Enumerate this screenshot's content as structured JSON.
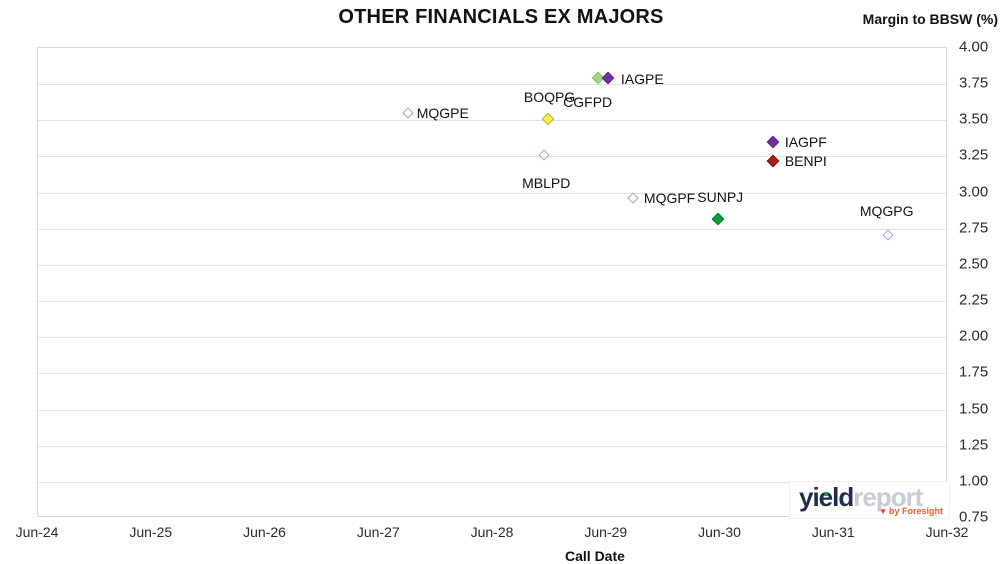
{
  "header": {
    "title": "OTHER FINANCIALS EX MAJORS",
    "y_axis_title": "Margin to BBSW (%)",
    "x_axis_title": "Call Date"
  },
  "chart_data": {
    "type": "scatter",
    "title": "OTHER FINANCIALS EX MAJORS",
    "xlabel": "Call Date",
    "ylabel": "Margin to BBSW (%)",
    "x_ticks": [
      "Jun-24",
      "Jun-25",
      "Jun-26",
      "Jun-27",
      "Jun-28",
      "Jun-29",
      "Jun-30",
      "Jun-31",
      "Jun-32"
    ],
    "y_ticks": [
      "4.00",
      "3.75",
      "3.50",
      "3.25",
      "3.00",
      "2.75",
      "2.50",
      "2.25",
      "2.00",
      "1.75",
      "1.50",
      "1.25",
      "1.00",
      "0.75"
    ],
    "ylim": [
      0.75,
      4.0
    ],
    "xlim_years_from_jun24": [
      0,
      8
    ],
    "grid": "horizontal-only",
    "legend_position": "none (points labeled inline)",
    "points": [
      {
        "label": "MQGPE",
        "call_date": "Sep-27",
        "x_years": 3.25,
        "margin_pct": 3.55,
        "marker": "diamond-outline",
        "fill": "#ffffff",
        "stroke": "#94aad8",
        "label_pos": "right",
        "label_offset": [
          9,
          0
        ]
      },
      {
        "label": "BOQPG",
        "call_date": "Dec-28",
        "x_years": 4.48,
        "margin_pct": 3.51,
        "marker": "diamond-filled",
        "fill": "#ffee3a",
        "stroke": "#b0ab45",
        "label_pos": "center",
        "label_offset": [
          2,
          -22
        ]
      },
      {
        "label": "CGFPD",
        "call_date": "May-29",
        "x_years": 4.92,
        "margin_pct": 3.79,
        "marker": "diamond-filled",
        "fill": "#a6d489",
        "stroke": "#8cbf6d",
        "label_pos": "center",
        "label_offset": [
          -10,
          24
        ]
      },
      {
        "label": "IAGPE",
        "call_date": "Jun-29",
        "x_years": 5.01,
        "margin_pct": 3.79,
        "marker": "diamond-filled",
        "fill": "#7030a0",
        "stroke": "#5b2482",
        "label_pos": "right",
        "label_offset": [
          13,
          1
        ]
      },
      {
        "label": "MBLPD",
        "call_date": "Nov-28",
        "x_years": 4.45,
        "margin_pct": 3.26,
        "marker": "diamond-outline",
        "fill": "#ffffff",
        "stroke": "#94aad8",
        "label_pos": "center",
        "label_offset": [
          2,
          28
        ]
      },
      {
        "label": "IAGPF",
        "call_date": "Dec-30",
        "x_years": 6.46,
        "margin_pct": 3.35,
        "marker": "diamond-filled",
        "fill": "#7030a0",
        "stroke": "#5b2482",
        "label_pos": "right",
        "label_offset": [
          12,
          0
        ]
      },
      {
        "label": "BENPI",
        "call_date": "Dec-30",
        "x_years": 6.46,
        "margin_pct": 3.22,
        "marker": "diamond-filled",
        "fill": "#a82020",
        "stroke": "#6e1010",
        "label_pos": "right",
        "label_offset": [
          12,
          0
        ]
      },
      {
        "label": "MQGPF",
        "call_date": "Sep-29",
        "x_years": 5.23,
        "margin_pct": 2.96,
        "marker": "diamond-outline",
        "fill": "#ffffff",
        "stroke": "#94aad8",
        "label_pos": "right",
        "label_offset": [
          11,
          0
        ]
      },
      {
        "label": "SUNPJ",
        "call_date": "Jun-30",
        "x_years": 5.98,
        "margin_pct": 2.82,
        "marker": "diamond-filled",
        "fill": "#00a038",
        "stroke": "#007a2a",
        "label_pos": "center",
        "label_offset": [
          2,
          -22
        ]
      },
      {
        "label": "MQGPG",
        "call_date": "Dec-31",
        "x_years": 7.47,
        "margin_pct": 2.71,
        "marker": "diamond-outline",
        "fill": "#ffffff",
        "stroke": "#94aad8",
        "label_pos": "center",
        "label_offset": [
          -1,
          -24
        ]
      }
    ]
  },
  "branding": {
    "name_left": "yield",
    "name_right": "report",
    "tagline": "by Foresight",
    "accent_navy": "#1e2c4f",
    "accent_gray": "#c7ccd6",
    "accent_orange": "#ee5b2d",
    "accent_green": "#27a348"
  }
}
